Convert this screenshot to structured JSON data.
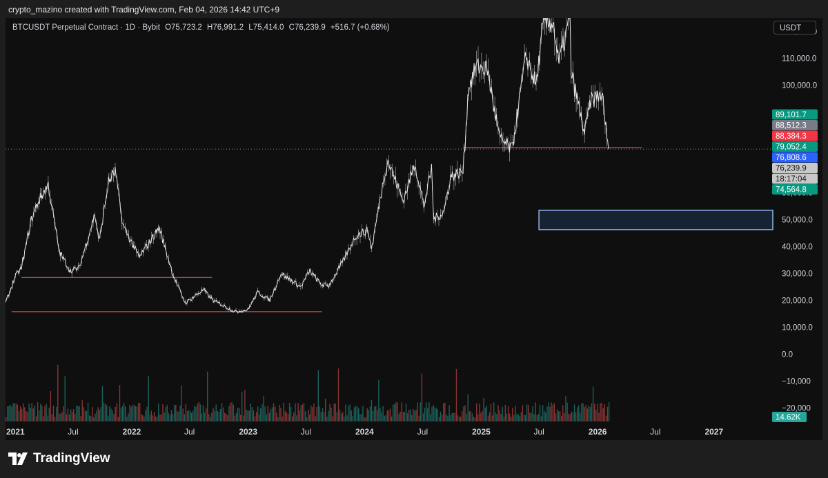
{
  "header": {
    "credit": "crypto_mazino created with TradingView.com, Feb 04, 2026 14:42 UTC+9"
  },
  "legend": {
    "symbol": "BTCUSDT Perpetual Contract · 1D · Bybit",
    "open": "O75,723.2",
    "high": "H76,991.2",
    "low": "L75,414.0",
    "close": "C76,239.9",
    "change": "+516.7 (+0.68%)"
  },
  "currency_button": "USDT",
  "footer": {
    "brand": "TradingView"
  },
  "colors": {
    "background": "#0f0f0f",
    "frame": "#1e1e1e",
    "price_line": "#e6e6e6",
    "support_line": "#d9434a",
    "zone_border": "#8fb4e8",
    "zone_fill": "#1b2a3f",
    "volume_up": "#26a69a",
    "volume_down": "#ef5350"
  },
  "chart_data": {
    "type": "candlestick",
    "x_axis": {
      "type": "time",
      "range": [
        "2020-12-01",
        "2027-06-30"
      ],
      "tick_labels": [
        {
          "date": "2021-01-01",
          "label": "2021",
          "bold": true
        },
        {
          "date": "2021-07-01",
          "label": "Jul",
          "bold": false
        },
        {
          "date": "2022-01-01",
          "label": "2022",
          "bold": true
        },
        {
          "date": "2022-07-01",
          "label": "Jul",
          "bold": false
        },
        {
          "date": "2023-01-01",
          "label": "2023",
          "bold": true
        },
        {
          "date": "2023-07-01",
          "label": "Jul",
          "bold": false
        },
        {
          "date": "2024-01-01",
          "label": "2024",
          "bold": true
        },
        {
          "date": "2024-07-01",
          "label": "Jul",
          "bold": false
        },
        {
          "date": "2025-01-01",
          "label": "2025",
          "bold": true
        },
        {
          "date": "2025-07-01",
          "label": "Jul",
          "bold": false
        },
        {
          "date": "2026-01-01",
          "label": "2026",
          "bold": true
        },
        {
          "date": "2026-07-01",
          "label": "Jul",
          "bold": false
        },
        {
          "date": "2027-01-01",
          "label": "2027",
          "bold": true
        }
      ]
    },
    "y_axis": {
      "range": [
        -25000,
        125000
      ],
      "tick_values": [
        120000,
        110000,
        100000,
        60000,
        50000,
        40000,
        30000,
        20000,
        10000,
        0,
        -10000,
        -20000
      ],
      "tick_labels": [
        "120,000.0",
        "110,000.0",
        "100,000.0",
        "60,000.0",
        "50,000.0",
        "40,000.0",
        "30,000.0",
        "20,000.0",
        "10,000.0",
        "0.0",
        "−10,000",
        "−20,000"
      ]
    },
    "price_series": {
      "dates": [
        "2020-12-01",
        "2021-01-01",
        "2021-01-20",
        "2021-02-20",
        "2021-03-15",
        "2021-04-14",
        "2021-05-19",
        "2021-06-22",
        "2021-07-20",
        "2021-09-07",
        "2021-09-21",
        "2021-10-20",
        "2021-11-10",
        "2021-12-04",
        "2022-01-24",
        "2022-03-28",
        "2022-05-12",
        "2022-06-18",
        "2022-08-14",
        "2022-09-13",
        "2022-11-09",
        "2022-11-21",
        "2022-12-31",
        "2023-01-31",
        "2023-03-10",
        "2023-04-14",
        "2023-06-15",
        "2023-07-13",
        "2023-08-17",
        "2023-09-11",
        "2023-10-23",
        "2023-12-05",
        "2024-01-11",
        "2024-01-23",
        "2024-03-05",
        "2024-03-14",
        "2024-05-01",
        "2024-06-07",
        "2024-07-05",
        "2024-07-29",
        "2024-08-05",
        "2024-09-06",
        "2024-09-27",
        "2024-11-05",
        "2024-11-22",
        "2024-12-17",
        "2025-01-20",
        "2025-02-28",
        "2025-04-07",
        "2025-05-22",
        "2025-06-22",
        "2025-07-14",
        "2025-08-14",
        "2025-09-01",
        "2025-10-06",
        "2025-10-10",
        "2025-11-21",
        "2025-12-10",
        "2026-01-14",
        "2026-02-04"
      ],
      "values": [
        19000,
        29000,
        32000,
        50000,
        57000,
        63000,
        38000,
        31000,
        32000,
        52000,
        42000,
        64000,
        68000,
        48000,
        36000,
        47000,
        29000,
        19000,
        24000,
        20000,
        16500,
        15800,
        16500,
        23000,
        20000,
        30000,
        25000,
        31000,
        26000,
        25500,
        34000,
        44000,
        46000,
        39000,
        68000,
        72000,
        57000,
        71000,
        55000,
        69000,
        50000,
        53000,
        66000,
        68000,
        99000,
        107000,
        106000,
        80000,
        76000,
        111000,
        100000,
        122000,
        124000,
        108000,
        125000,
        105000,
        82000,
        94000,
        97000,
        76240
      ]
    },
    "volume": {
      "label": "14.62K"
    },
    "support_lines": [
      {
        "from": "2021-01-20",
        "to": "2022-09-10",
        "y": 28500
      },
      {
        "from": "2020-12-20",
        "to": "2023-08-20",
        "y": 15800
      },
      {
        "from": "2024-11-05",
        "to": "2026-05-20",
        "y": 76800
      }
    ],
    "zone": {
      "from": "2025-07-01",
      "to": "2027-06-30",
      "y_top": 53500,
      "y_bottom": 46300
    },
    "price_badges": [
      {
        "value": 89101.7,
        "label": "89,101.7",
        "color": "#089981"
      },
      {
        "value": 88512.3,
        "label": "88,512.3",
        "color": "#787b86"
      },
      {
        "value": 88384.3,
        "label": "88,384.3",
        "color": "#f23645"
      },
      {
        "value": 79052.4,
        "label": "79,052.4",
        "color": "#089981"
      },
      {
        "value": 76808.6,
        "label": "76,808.6",
        "color": "#2962ff"
      },
      {
        "value": 76239.9,
        "label": "76,239.9",
        "color": "#c8c8c8"
      },
      {
        "value": 74564.8,
        "label": "74,564.8",
        "color": "#089981"
      }
    ],
    "countdown": "18:17:04",
    "current_price": 76239.9
  }
}
